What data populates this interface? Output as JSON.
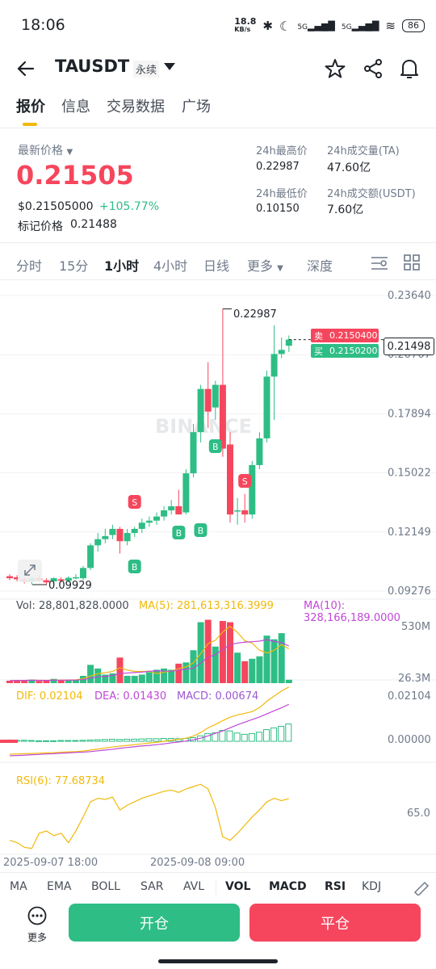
{
  "status_bar": {
    "time": "18:06",
    "net_speed_top": "18.8",
    "net_speed_unit": "KB/s",
    "sig1": "5G",
    "sig2": "5G",
    "battery": "86"
  },
  "header": {
    "title": "TAUSDT",
    "tag": "永续"
  },
  "tabs": [
    "报价",
    "信息",
    "交易数据",
    "广场"
  ],
  "price_panel": {
    "latest_label": "最新价格",
    "last_price": "0.21505",
    "usd_price": "$0.21505000",
    "change_pct": "+105.77%",
    "mark_label": "标记价格",
    "mark_price": "0.21488",
    "high_label": "24h最高价",
    "high_value": "0.22987",
    "vol_ta_label": "24h成交量(TA)",
    "vol_ta_value": "47.60亿",
    "low_label": "24h最低价",
    "low_value": "0.10150",
    "vol_usdt_label": "24h成交额(USDT)",
    "vol_usdt_value": "7.60亿"
  },
  "intervals": [
    "分时",
    "15分",
    "1小时",
    "4小时",
    "日线",
    "更多",
    "深度"
  ],
  "chart": {
    "watermark": "BINANCE",
    "price_ticks": [
      "0.23640",
      "0.20767",
      "0.17894",
      "0.15022",
      "0.12149",
      "0.09276"
    ],
    "high_marker": "0.22987",
    "low_marker": "0.09929",
    "current_price_tag": "0.21498",
    "ask_label": "卖",
    "ask_price": "0.2150400",
    "bid_label": "买",
    "bid_price": "0.2150200",
    "markers": [
      "S",
      "B",
      "B",
      "B",
      "B",
      "S"
    ]
  },
  "volume": {
    "vol_label": "Vol: 28,801,828.0000",
    "ma5_label": "MA(5): 281,613,316.3999",
    "ma10_label": "MA(10): 328,166,189.0000",
    "ticks": [
      "530M",
      "26.3M"
    ]
  },
  "macd": {
    "dif_label": "DIF: 0.02104",
    "dea_label": "DEA: 0.01430",
    "macd_label": "MACD: 0.00674",
    "ticks": [
      "0.02104",
      "0.00000"
    ]
  },
  "rsi": {
    "label": "RSI(6): 77.68734",
    "tick": "65.0"
  },
  "time_axis": [
    "2025-09-07 18:00",
    "2025-09-08 09:00"
  ],
  "indicator_tabs": [
    "MA",
    "EMA",
    "BOLL",
    "SAR",
    "AVL",
    "VOL",
    "MACD",
    "RSI",
    "KDJ"
  ],
  "bottom": {
    "more_label": "更多",
    "open_label": "开仓",
    "close_label": "平仓"
  },
  "colors": {
    "up": "#2ebd85",
    "down": "#f6465d",
    "accent": "#f0b90b",
    "ma5": "#f0b90b",
    "ma10": "#c147d8"
  },
  "chart_data": {
    "type": "candlestick",
    "price_axis_range": [
      0.09276,
      0.2364
    ],
    "candles": [
      [
        0.1,
        0.101,
        0.098,
        0.099
      ],
      [
        0.0995,
        0.1005,
        0.0975,
        0.0985
      ],
      [
        0.0985,
        0.0995,
        0.0965,
        0.0975
      ],
      [
        0.0975,
        0.1,
        0.096,
        0.099
      ],
      [
        0.099,
        0.1,
        0.0975,
        0.098
      ],
      [
        0.098,
        0.099,
        0.096,
        0.097
      ],
      [
        0.0975,
        0.0995,
        0.096,
        0.099
      ],
      [
        0.0985,
        0.0995,
        0.097,
        0.0978
      ],
      [
        0.0978,
        0.1,
        0.097,
        0.0992
      ],
      [
        0.0992,
        0.101,
        0.0985,
        0.0995
      ],
      [
        0.099,
        0.105,
        0.098,
        0.104
      ],
      [
        0.104,
        0.116,
        0.103,
        0.115
      ],
      [
        0.115,
        0.121,
        0.112,
        0.118
      ],
      [
        0.118,
        0.123,
        0.116,
        0.1195
      ],
      [
        0.12,
        0.125,
        0.118,
        0.123
      ],
      [
        0.123,
        0.124,
        0.111,
        0.117
      ],
      [
        0.117,
        0.123,
        0.115,
        0.121
      ],
      [
        0.121,
        0.124,
        0.119,
        0.123
      ],
      [
        0.123,
        0.128,
        0.121,
        0.126
      ],
      [
        0.126,
        0.129,
        0.124,
        0.127
      ],
      [
        0.127,
        0.131,
        0.125,
        0.129
      ],
      [
        0.129,
        0.134,
        0.127,
        0.132
      ],
      [
        0.132,
        0.137,
        0.13,
        0.134
      ],
      [
        0.134,
        0.142,
        0.13,
        0.13
      ],
      [
        0.131,
        0.152,
        0.13,
        0.15
      ],
      [
        0.15,
        0.174,
        0.148,
        0.17
      ],
      [
        0.17,
        0.193,
        0.165,
        0.191
      ],
      [
        0.191,
        0.204,
        0.172,
        0.18
      ],
      [
        0.182,
        0.195,
        0.176,
        0.193
      ],
      [
        0.193,
        0.2299,
        0.158,
        0.162
      ],
      [
        0.164,
        0.17,
        0.126,
        0.13
      ],
      [
        0.132,
        0.138,
        0.125,
        0.132
      ],
      [
        0.132,
        0.14,
        0.126,
        0.13
      ],
      [
        0.13,
        0.156,
        0.128,
        0.154
      ],
      [
        0.154,
        0.17,
        0.152,
        0.167
      ],
      [
        0.167,
        0.2,
        0.165,
        0.197
      ],
      [
        0.197,
        0.222,
        0.176,
        0.208
      ],
      [
        0.208,
        0.216,
        0.206,
        0.21
      ],
      [
        0.212,
        0.217,
        0.209,
        0.215
      ]
    ],
    "volume_millions": [
      20,
      25,
      22,
      30,
      18,
      20,
      35,
      25,
      30,
      28,
      60,
      150,
      120,
      70,
      80,
      210,
      60,
      60,
      70,
      90,
      110,
      120,
      110,
      160,
      170,
      270,
      500,
      520,
      300,
      510,
      500,
      250,
      180,
      200,
      220,
      390,
      360,
      410,
      28
    ],
    "macd_hist": [
      0.0005,
      0.0004,
      0.0004,
      0.0003,
      0.0002,
      0.0002,
      0.0002,
      0.0003,
      0.0003,
      0.0003,
      0.0004,
      0.0005,
      0.0006,
      0.0007,
      0.0008,
      0.0007,
      0.0008,
      0.0008,
      0.0009,
      0.001,
      0.001,
      0.0011,
      0.0011,
      0.001,
      0.0011,
      0.0014,
      0.0021,
      0.003,
      0.0033,
      0.0042,
      0.004,
      0.0032,
      0.0027,
      0.003,
      0.0035,
      0.0045,
      0.0052,
      0.0058,
      0.0067
    ],
    "dif": [
      -0.005,
      -0.0049,
      -0.0048,
      -0.0047,
      -0.0046,
      -0.0045,
      -0.0044,
      -0.0042,
      -0.0041,
      -0.004,
      -0.0038,
      -0.0034,
      -0.003,
      -0.0026,
      -0.0022,
      -0.0019,
      -0.0016,
      -0.0013,
      -0.001,
      -0.0007,
      -0.0004,
      0.0,
      0.0004,
      0.0008,
      0.0012,
      0.002,
      0.0034,
      0.0052,
      0.0065,
      0.008,
      0.0093,
      0.0102,
      0.0108,
      0.0115,
      0.013,
      0.0155,
      0.0175,
      0.0195,
      0.021
    ],
    "dea": [
      -0.0056,
      -0.0055,
      -0.0054,
      -0.0052,
      -0.0051,
      -0.0049,
      -0.0048,
      -0.0046,
      -0.0045,
      -0.0043,
      -0.0042,
      -0.004,
      -0.0037,
      -0.0034,
      -0.0031,
      -0.0027,
      -0.0024,
      -0.0021,
      -0.0018,
      -0.0016,
      -0.0013,
      -0.001,
      -0.0006,
      -0.0003,
      0.0001,
      0.0006,
      0.0012,
      0.0021,
      0.0031,
      0.004,
      0.0052,
      0.0064,
      0.0074,
      0.0084,
      0.0094,
      0.0106,
      0.0118,
      0.013,
      0.0143
    ],
    "rsi": [
      42,
      40,
      36,
      35,
      48,
      50,
      46,
      48,
      40,
      50,
      62,
      75,
      78,
      77,
      79,
      68,
      72,
      75,
      78,
      80,
      82,
      84,
      85,
      83,
      86,
      88,
      90,
      86,
      70,
      45,
      42,
      48,
      55,
      62,
      68,
      75,
      78,
      76,
      77.7
    ]
  }
}
